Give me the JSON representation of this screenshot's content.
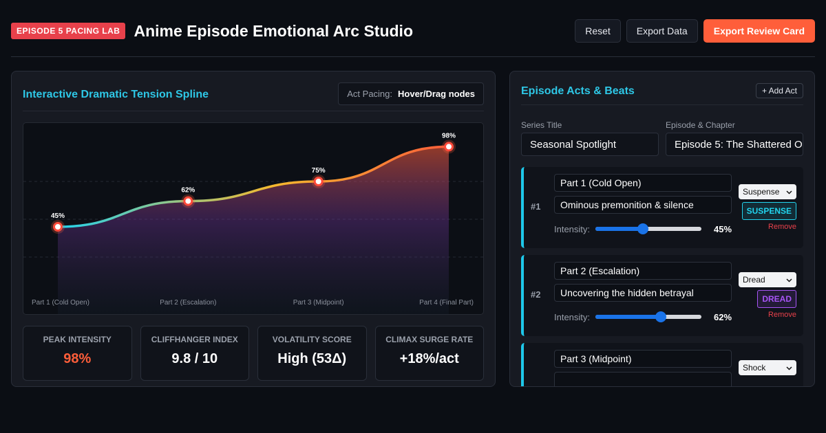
{
  "header": {
    "badge": "EPISODE 5 PACING LAB",
    "title": "Anime Episode Emotional Arc Studio",
    "buttons": {
      "reset": "Reset",
      "export_data": "Export Data",
      "export_card": "Export Review Card"
    }
  },
  "left_panel": {
    "title": "Interactive Dramatic Tension Spline",
    "pacing_label": "Act Pacing:",
    "pacing_value": "Hover/Drag nodes"
  },
  "chart_data": {
    "type": "area",
    "categories": [
      "Part 1 (Cold Open)",
      "Part 2 (Escalation)",
      "Part 3 (Midpoint)",
      "Part 4 (Final Part)"
    ],
    "values": [
      45,
      62,
      75,
      98
    ],
    "value_labels": [
      "45%",
      "62%",
      "75%",
      "98%"
    ],
    "ylim": [
      0,
      100
    ],
    "grid": true,
    "colors": {
      "start": "#22d3ee",
      "mid": "#f5b92f",
      "end": "#ff5e3a"
    }
  },
  "stats": [
    {
      "label": "PEAK INTENSITY",
      "value": "98%",
      "highlight": true
    },
    {
      "label": "CLIFFHANGER INDEX",
      "value": "9.8 / 10",
      "highlight": false
    },
    {
      "label": "VOLATILITY SCORE",
      "value": "High (53Δ)",
      "highlight": false
    },
    {
      "label": "CLIMAX SURGE RATE",
      "value": "+18%/act",
      "highlight": false
    }
  ],
  "right_panel": {
    "title": "Episode Acts & Beats",
    "add_act": "+ Add Act",
    "series_label": "Series Title",
    "series_value": "Seasonal Spotlight",
    "episode_label": "Episode & Chapter",
    "episode_value": "Episode 5: The Shattered O"
  },
  "acts": [
    {
      "num": "#1",
      "name": "Part 1 (Cold Open)",
      "beat": "Ominous premonition & silence",
      "intensity_label": "Intensity:",
      "intensity": 45,
      "intensity_text": "45%",
      "mood": "Suspense",
      "badge": "SUSPENSE",
      "badge_color": "#22d3ee",
      "remove": "Remove"
    },
    {
      "num": "#2",
      "name": "Part 2 (Escalation)",
      "beat": "Uncovering the hidden betrayal",
      "intensity_label": "Intensity:",
      "intensity": 62,
      "intensity_text": "62%",
      "mood": "Dread",
      "badge": "DREAD",
      "badge_color": "#a855f7",
      "remove": "Remove"
    },
    {
      "num": "",
      "name": "Part 3 (Midpoint)",
      "beat": "",
      "intensity_label": "",
      "intensity": 75,
      "intensity_text": "",
      "mood": "Shock",
      "badge": "",
      "badge_color": "#f59e0b",
      "remove": ""
    }
  ]
}
